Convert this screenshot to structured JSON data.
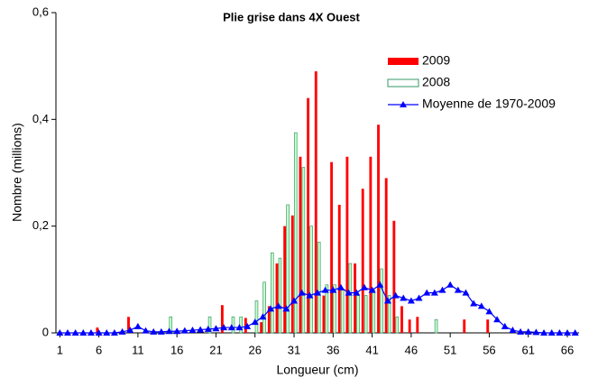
{
  "chart_data": {
    "type": "bar",
    "title": "Plie grise dans 4X Ouest",
    "xlabel": "Longueur (cm)",
    "ylabel": "Nombre (millions)",
    "x": [
      1,
      2,
      3,
      4,
      5,
      6,
      7,
      8,
      9,
      10,
      11,
      12,
      13,
      14,
      15,
      16,
      17,
      18,
      19,
      20,
      21,
      22,
      23,
      24,
      25,
      26,
      27,
      28,
      29,
      30,
      31,
      32,
      33,
      34,
      35,
      36,
      37,
      38,
      39,
      40,
      41,
      42,
      43,
      44,
      45,
      46,
      47,
      48,
      49,
      50,
      51,
      52,
      53,
      54,
      55,
      56,
      57,
      58,
      59,
      60,
      61,
      62,
      63,
      64,
      65,
      66,
      67
    ],
    "xlim": [
      0.5,
      67.5
    ],
    "xticks": [
      1,
      6,
      11,
      16,
      21,
      26,
      31,
      36,
      41,
      46,
      51,
      56,
      61,
      66
    ],
    "ylim": [
      0,
      0.6
    ],
    "yticks": [
      0,
      {
        "value": 0.2,
        "label": "0,2"
      },
      {
        "value": 0.4,
        "label": "0,4"
      },
      {
        "value": 0.6,
        "label": "0,6"
      }
    ],
    "legend": "upper right",
    "series": [
      {
        "name": "2009",
        "type": "bar",
        "color": "#ff0000",
        "values": [
          0,
          0,
          0,
          0,
          0,
          0.01,
          0,
          0,
          0,
          0.03,
          0,
          0,
          0,
          0,
          0,
          0,
          0,
          0,
          0,
          0,
          0,
          0.052,
          0,
          0,
          0.028,
          0,
          0.02,
          0.05,
          0.13,
          0.2,
          0.22,
          0.33,
          0.44,
          0.49,
          0.07,
          0.32,
          0.24,
          0.33,
          0.13,
          0.27,
          0.33,
          0.39,
          0.29,
          0.21,
          0.05,
          0.025,
          0.03,
          0,
          0,
          0,
          0,
          0,
          0.025,
          0,
          0,
          0.025,
          0,
          0,
          0,
          0,
          0,
          0,
          0,
          0,
          0,
          0,
          0
        ]
      },
      {
        "name": "2008",
        "type": "bar",
        "color": "#339966",
        "values": [
          0,
          0,
          0,
          0,
          0,
          0,
          0,
          0,
          0,
          0,
          0,
          0,
          0,
          0,
          0.03,
          0,
          0,
          0,
          0,
          0.03,
          0,
          0,
          0.03,
          0.03,
          0,
          0.06,
          0.095,
          0.15,
          0.14,
          0.24,
          0.375,
          0.31,
          0.2,
          0.17,
          0.09,
          0.09,
          0.08,
          0.13,
          0.07,
          0.07,
          0.08,
          0.12,
          0.07,
          0.03,
          0,
          0,
          0,
          0,
          0.025,
          0,
          0,
          0,
          0,
          0,
          0,
          0,
          0,
          0,
          0,
          0,
          0,
          0,
          0,
          0,
          0,
          0,
          0
        ]
      },
      {
        "name": "Moyenne de 1970-2009",
        "type": "line",
        "color": "#0000ff",
        "values": [
          0,
          0,
          0,
          0,
          0,
          0,
          0,
          0,
          0.002,
          0.005,
          0.012,
          0.004,
          0.002,
          0.002,
          0.003,
          0.003,
          0.004,
          0.005,
          0.006,
          0.007,
          0.008,
          0.01,
          0.01,
          0.01,
          0.012,
          0.02,
          0.03,
          0.045,
          0.05,
          0.045,
          0.06,
          0.075,
          0.07,
          0.075,
          0.08,
          0.08,
          0.085,
          0.075,
          0.075,
          0.085,
          0.08,
          0.09,
          0.06,
          0.07,
          0.065,
          0.06,
          0.065,
          0.075,
          0.075,
          0.08,
          0.09,
          0.08,
          0.075,
          0.055,
          0.05,
          0.04,
          0.025,
          0.012,
          0.005,
          0.002,
          0.002,
          0.001,
          0,
          0,
          0,
          0,
          0
        ]
      }
    ]
  }
}
